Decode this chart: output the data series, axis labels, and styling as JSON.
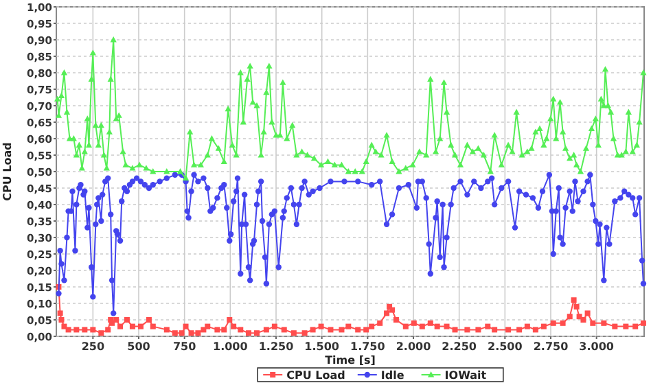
{
  "chart_data": {
    "type": "line",
    "xlabel": "Time [s]",
    "ylabel": "CPU Load",
    "grid": true,
    "legend": "bottom",
    "xlim": [
      50,
      3260
    ],
    "ylim": [
      0,
      1
    ],
    "xticks": [
      {
        "value": 250,
        "label": "250"
      },
      {
        "value": 500,
        "label": "500"
      },
      {
        "value": 750,
        "label": "750"
      },
      {
        "value": 1000,
        "label": "1.000"
      },
      {
        "value": 1250,
        "label": "1.250"
      },
      {
        "value": 1500,
        "label": "1.500"
      },
      {
        "value": 1750,
        "label": "1.750"
      },
      {
        "value": 2000,
        "label": "2.000"
      },
      {
        "value": 2250,
        "label": "2.250"
      },
      {
        "value": 2500,
        "label": "2.500"
      },
      {
        "value": 2750,
        "label": "2.750"
      },
      {
        "value": 3000,
        "label": "3.000"
      }
    ],
    "yticks": [
      {
        "value": 0,
        "label": "0,00"
      },
      {
        "value": 0.05,
        "label": "0,05"
      },
      {
        "value": 0.1,
        "label": "0,10"
      },
      {
        "value": 0.15,
        "label": "0,15"
      },
      {
        "value": 0.2,
        "label": "0,20"
      },
      {
        "value": 0.25,
        "label": "0,25"
      },
      {
        "value": 0.3,
        "label": "0,30"
      },
      {
        "value": 0.35,
        "label": "0,35"
      },
      {
        "value": 0.4,
        "label": "0,40"
      },
      {
        "value": 0.45,
        "label": "0,45"
      },
      {
        "value": 0.5,
        "label": "0,50"
      },
      {
        "value": 0.55,
        "label": "0,55"
      },
      {
        "value": 0.6,
        "label": "0,60"
      },
      {
        "value": 0.65,
        "label": "0,65"
      },
      {
        "value": 0.7,
        "label": "0,70"
      },
      {
        "value": 0.75,
        "label": "0,75"
      },
      {
        "value": 0.8,
        "label": "0,80"
      },
      {
        "value": 0.85,
        "label": "0,85"
      },
      {
        "value": 0.9,
        "label": "0,90"
      },
      {
        "value": 0.95,
        "label": "0,95"
      },
      {
        "value": 1,
        "label": "1,00"
      }
    ],
    "series": [
      {
        "name": "CPU Load",
        "color": "#ff4d4d",
        "marker": "square",
        "x": [
          63,
          71,
          78,
          93,
          116,
          160,
          205,
          250,
          295,
          332,
          347,
          354,
          377,
          399,
          436,
          466,
          511,
          556,
          578,
          653,
          698,
          735,
          757,
          787,
          824,
          854,
          876,
          929,
          966,
          996,
          1018,
          1056,
          1100,
          1145,
          1197,
          1242,
          1294,
          1347,
          1406,
          1451,
          1496,
          1548,
          1608,
          1645,
          1697,
          1742,
          1772,
          1817,
          1854,
          1869,
          1884,
          1906,
          1958,
          2003,
          2048,
          2093,
          2130,
          2182,
          2227,
          2294,
          2354,
          2406,
          2443,
          2518,
          2578,
          2622,
          2667,
          2712,
          2764,
          2816,
          2854,
          2876,
          2891,
          2906,
          2928,
          2951,
          2980,
          3040,
          3100,
          3160,
          3212,
          3256
        ],
        "values": [
          0.15,
          0.07,
          0.05,
          0.03,
          0.02,
          0.02,
          0.02,
          0.02,
          0.01,
          0.02,
          0.05,
          0.04,
          0.05,
          0.03,
          0.05,
          0.03,
          0.03,
          0.05,
          0.03,
          0.02,
          0.01,
          0.01,
          0.03,
          0.01,
          0.01,
          0.02,
          0.03,
          0.02,
          0.02,
          0.05,
          0.03,
          0.02,
          0.01,
          0.01,
          0.02,
          0.03,
          0.02,
          0.01,
          0.01,
          0.02,
          0.03,
          0.02,
          0.02,
          0.03,
          0.02,
          0.02,
          0.03,
          0.04,
          0.07,
          0.09,
          0.08,
          0.05,
          0.03,
          0.04,
          0.03,
          0.04,
          0.03,
          0.03,
          0.02,
          0.02,
          0.02,
          0.03,
          0.02,
          0.02,
          0.02,
          0.03,
          0.02,
          0.03,
          0.04,
          0.04,
          0.06,
          0.11,
          0.09,
          0.06,
          0.05,
          0.07,
          0.04,
          0.04,
          0.03,
          0.03,
          0.03,
          0.04
        ]
      },
      {
        "name": "Idle",
        "color": "#4444ee",
        "marker": "circle",
        "x": [
          63,
          71,
          78,
          93,
          108,
          116,
          131,
          138,
          153,
          160,
          175,
          183,
          198,
          205,
          220,
          228,
          242,
          250,
          265,
          272,
          280,
          295,
          302,
          317,
          332,
          347,
          354,
          362,
          377,
          384,
          399,
          407,
          422,
          436,
          451,
          466,
          489,
          511,
          533,
          556,
          578,
          615,
          653,
          698,
          735,
          757,
          765,
          772,
          787,
          802,
          824,
          854,
          876,
          891,
          906,
          929,
          951,
          966,
          981,
          996,
          1003,
          1018,
          1033,
          1040,
          1056,
          1063,
          1078,
          1085,
          1100,
          1108,
          1123,
          1130,
          1145,
          1153,
          1168,
          1175,
          1190,
          1197,
          1212,
          1227,
          1242,
          1264,
          1287,
          1294,
          1309,
          1332,
          1347,
          1362,
          1376,
          1391,
          1406,
          1429,
          1451,
          1488,
          1548,
          1623,
          1697,
          1772,
          1817,
          1854,
          1884,
          1921,
          1973,
          2018,
          2026,
          2048,
          2070,
          2085,
          2093,
          2122,
          2130,
          2145,
          2160,
          2167,
          2182,
          2205,
          2220,
          2257,
          2294,
          2331,
          2369,
          2406,
          2428,
          2443,
          2481,
          2518,
          2555,
          2578,
          2615,
          2652,
          2682,
          2705,
          2742,
          2757,
          2764,
          2779,
          2794,
          2801,
          2816,
          2831,
          2854,
          2869,
          2883,
          2898,
          2928,
          2951,
          2965,
          2980,
          2995,
          3010,
          3018,
          3040,
          3055,
          3070,
          3100,
          3130,
          3152,
          3175,
          3197,
          3212,
          3234,
          3249,
          3256
        ],
        "values": [
          0.13,
          0.26,
          0.22,
          0.17,
          0.3,
          0.38,
          0.38,
          0.44,
          0.26,
          0.4,
          0.45,
          0.46,
          0.43,
          0.44,
          0.33,
          0.39,
          0.21,
          0.12,
          0.34,
          0.4,
          0.42,
          0.35,
          0.43,
          0.47,
          0.48,
          0.37,
          0.17,
          0.07,
          0.32,
          0.31,
          0.29,
          0.41,
          0.45,
          0.44,
          0.46,
          0.47,
          0.48,
          0.47,
          0.46,
          0.45,
          0.46,
          0.47,
          0.48,
          0.49,
          0.49,
          0.47,
          0.38,
          0.36,
          0.44,
          0.49,
          0.47,
          0.48,
          0.45,
          0.38,
          0.39,
          0.42,
          0.45,
          0.46,
          0.39,
          0.29,
          0.31,
          0.41,
          0.44,
          0.48,
          0.19,
          0.34,
          0.43,
          0.34,
          0.21,
          0.17,
          0.28,
          0.29,
          0.4,
          0.44,
          0.47,
          0.35,
          0.24,
          0.16,
          0.34,
          0.37,
          0.38,
          0.21,
          0.36,
          0.38,
          0.42,
          0.45,
          0.4,
          0.34,
          0.4,
          0.45,
          0.47,
          0.43,
          0.44,
          0.45,
          0.47,
          0.47,
          0.47,
          0.46,
          0.47,
          0.34,
          0.37,
          0.45,
          0.46,
          0.39,
          0.47,
          0.47,
          0.42,
          0.28,
          0.19,
          0.36,
          0.41,
          0.24,
          0.4,
          0.21,
          0.3,
          0.4,
          0.45,
          0.47,
          0.43,
          0.47,
          0.45,
          0.47,
          0.48,
          0.4,
          0.45,
          0.47,
          0.33,
          0.44,
          0.43,
          0.42,
          0.39,
          0.44,
          0.49,
          0.38,
          0.25,
          0.38,
          0.45,
          0.3,
          0.28,
          0.39,
          0.44,
          0.38,
          0.47,
          0.41,
          0.44,
          0.47,
          0.49,
          0.4,
          0.35,
          0.28,
          0.34,
          0.17,
          0.33,
          0.28,
          0.41,
          0.42,
          0.44,
          0.43,
          0.42,
          0.37,
          0.42,
          0.23,
          0.16
        ]
      },
      {
        "name": "IOWait",
        "color": "#55ee55",
        "marker": "triangle",
        "x": [
          56,
          63,
          78,
          93,
          108,
          123,
          145,
          160,
          175,
          190,
          205,
          220,
          228,
          242,
          250,
          265,
          280,
          295,
          310,
          325,
          340,
          347,
          362,
          377,
          392,
          414,
          429,
          466,
          504,
          541,
          578,
          653,
          727,
          757,
          780,
          802,
          839,
          876,
          899,
          936,
          966,
          988,
          1011,
          1033,
          1056,
          1071,
          1093,
          1108,
          1123,
          1145,
          1168,
          1183,
          1197,
          1212,
          1227,
          1250,
          1272,
          1287,
          1309,
          1339,
          1362,
          1391,
          1421,
          1458,
          1496,
          1533,
          1570,
          1608,
          1645,
          1682,
          1720,
          1742,
          1772,
          1794,
          1824,
          1854,
          1884,
          1921,
          1958,
          1996,
          2033,
          2070,
          2093,
          2122,
          2145,
          2167,
          2182,
          2205,
          2227,
          2257,
          2294,
          2324,
          2354,
          2384,
          2421,
          2443,
          2481,
          2518,
          2540,
          2563,
          2593,
          2622,
          2645,
          2667,
          2690,
          2712,
          2727,
          2749,
          2764,
          2779,
          2801,
          2816,
          2831,
          2854,
          2876,
          2891,
          2913,
          2943,
          2973,
          2995,
          3010,
          3025,
          3040,
          3048,
          3063,
          3078,
          3093,
          3115,
          3137,
          3160,
          3175,
          3197,
          3220,
          3234,
          3256
        ],
        "values": [
          0.72,
          0.67,
          0.73,
          0.8,
          0.68,
          0.6,
          0.6,
          0.55,
          0.58,
          0.51,
          0.56,
          0.66,
          0.58,
          0.78,
          0.86,
          0.64,
          0.58,
          0.64,
          0.55,
          0.51,
          0.62,
          0.78,
          0.9,
          0.66,
          0.67,
          0.56,
          0.52,
          0.51,
          0.52,
          0.51,
          0.5,
          0.5,
          0.5,
          0.48,
          0.62,
          0.52,
          0.52,
          0.55,
          0.6,
          0.57,
          0.53,
          0.69,
          0.58,
          0.55,
          0.8,
          0.65,
          0.78,
          0.82,
          0.71,
          0.7,
          0.55,
          0.62,
          0.74,
          0.82,
          0.65,
          0.61,
          0.61,
          0.77,
          0.6,
          0.64,
          0.55,
          0.56,
          0.55,
          0.54,
          0.52,
          0.53,
          0.52,
          0.52,
          0.5,
          0.5,
          0.5,
          0.53,
          0.58,
          0.56,
          0.55,
          0.61,
          0.53,
          0.5,
          0.51,
          0.52,
          0.56,
          0.55,
          0.78,
          0.56,
          0.6,
          0.77,
          0.68,
          0.58,
          0.55,
          0.52,
          0.58,
          0.56,
          0.57,
          0.55,
          0.5,
          0.61,
          0.52,
          0.58,
          0.56,
          0.68,
          0.55,
          0.56,
          0.57,
          0.62,
          0.63,
          0.58,
          0.6,
          0.66,
          0.72,
          0.6,
          0.71,
          0.62,
          0.57,
          0.54,
          0.55,
          0.52,
          0.5,
          0.57,
          0.63,
          0.66,
          0.58,
          0.72,
          0.7,
          0.81,
          0.7,
          0.68,
          0.6,
          0.55,
          0.55,
          0.56,
          0.68,
          0.56,
          0.58,
          0.65,
          0.8
        ]
      }
    ]
  }
}
